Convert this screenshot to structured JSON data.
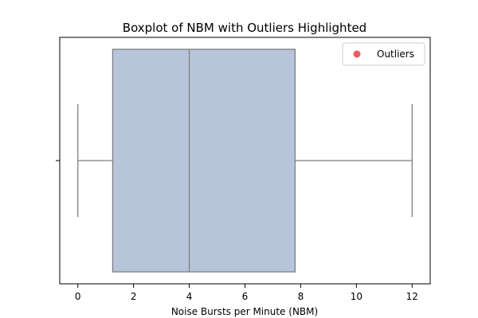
{
  "chart_data": {
    "type": "boxplot",
    "title": "Boxplot of NBM with Outliers Highlighted",
    "xlabel": "Noise Bursts per Minute (NBM)",
    "ylabel": "",
    "xlim": [
      -0.65,
      12.65
    ],
    "xticks": [
      0,
      2,
      4,
      6,
      8,
      10,
      12
    ],
    "box": {
      "whisker_low": 0,
      "q1": 1.25,
      "median": 4,
      "q3": 7.8,
      "whisker_high": 12,
      "fill": "#b6c5d9",
      "edge": "#7f7f7f"
    },
    "outliers": [],
    "legend": {
      "placement": "top-right",
      "entries": [
        {
          "label": "Outliers",
          "color": "#f05a5a"
        }
      ]
    },
    "grid": false
  }
}
